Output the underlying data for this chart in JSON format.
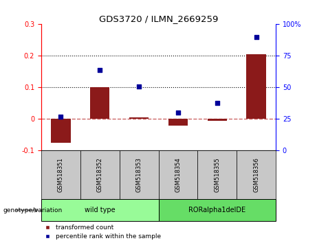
{
  "title": "GDS3720 / ILMN_2669259",
  "samples": [
    "GSM518351",
    "GSM518352",
    "GSM518353",
    "GSM518354",
    "GSM518355",
    "GSM518356"
  ],
  "transformed_counts": [
    -0.075,
    0.1,
    0.005,
    -0.02,
    -0.005,
    0.205
  ],
  "percentile_ranks": [
    27,
    64,
    51,
    30,
    38,
    90
  ],
  "ylim_left": [
    -0.1,
    0.3
  ],
  "ylim_right": [
    0,
    100
  ],
  "yticks_left": [
    -0.1,
    0.0,
    0.1,
    0.2,
    0.3
  ],
  "yticks_right": [
    0,
    25,
    50,
    75,
    100
  ],
  "ytick_labels_left": [
    "-0.1",
    "0",
    "0.1",
    "0.2",
    "0.3"
  ],
  "ytick_labels_right": [
    "0",
    "25",
    "50",
    "75",
    "100%"
  ],
  "hlines_dotted": [
    0.1,
    0.2
  ],
  "zero_line_color": "#CC6666",
  "bar_color": "#8B1A1A",
  "scatter_color": "#000099",
  "bar_width": 0.5,
  "wt_color": "#98FB98",
  "ror_color": "#66DD66",
  "sample_box_color": "#C8C8C8",
  "legend_items": [
    "transformed count",
    "percentile rank within the sample"
  ],
  "group_labels": [
    "wild type",
    "RORalpha1delDE"
  ],
  "group_wt_indices": [
    0,
    2
  ],
  "group_ror_indices": [
    3,
    5
  ]
}
